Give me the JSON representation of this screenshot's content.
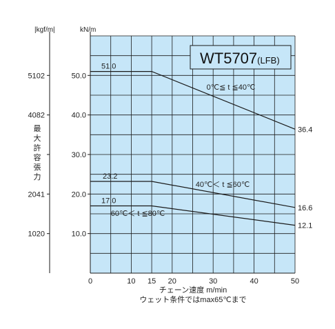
{
  "chart_data": {
    "type": "line",
    "title": "WT5707",
    "title_suffix": "(LFB)",
    "unit_kgf": "|kgf/m|",
    "unit_kn": "kN/m",
    "ylabel": "最大許容張力",
    "xlabel": "チェーン速度 m/min",
    "note": "ウェット条件ではmax65℃まで",
    "xlim": [
      0,
      50
    ],
    "ylim": [
      0,
      60
    ],
    "x_ticks": [
      0,
      10,
      15,
      20,
      30,
      40,
      50
    ],
    "y_ticks": [
      {
        "value": 10,
        "kn": "10.0",
        "kgf": "1020"
      },
      {
        "value": 20,
        "kn": "20.0",
        "kgf": "2041"
      },
      {
        "value": 30,
        "kn": "30.0",
        "kgf": ""
      },
      {
        "value": 40,
        "kn": "40.0",
        "kgf": "4082"
      },
      {
        "value": 50,
        "kn": "50.0",
        "kgf": "5102"
      }
    ],
    "grid": true,
    "background": "#c6e6f8",
    "series": [
      {
        "name": "0℃≦ t ≦40℃",
        "x": [
          0,
          15,
          50
        ],
        "y": [
          51.0,
          51.0,
          36.4
        ],
        "start_label": "51.0",
        "end_label": "36.4"
      },
      {
        "name": "40℃＜ t ≦60℃",
        "x": [
          0,
          15,
          50
        ],
        "y": [
          23.2,
          23.2,
          16.6
        ],
        "start_label": "23.2",
        "end_label": "16.6"
      },
      {
        "name": "60℃＜ t ≦80℃",
        "x": [
          0,
          15,
          50
        ],
        "y": [
          17.0,
          17.0,
          12.1
        ],
        "start_label": "17.0",
        "end_label": "12.1"
      }
    ]
  }
}
